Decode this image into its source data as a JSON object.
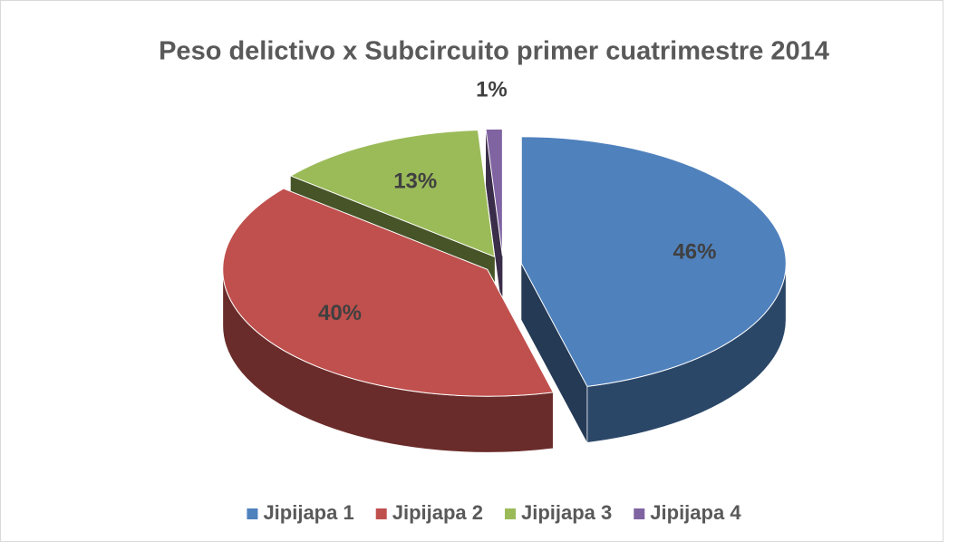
{
  "chart_data": {
    "type": "pie",
    "title": "Peso delictivo x Subcircuito primer cuatrimestre 2014",
    "categories": [
      "Jipijapa 1",
      "Jipijapa 2",
      "Jipijapa 3",
      "Jipijapa 4"
    ],
    "values": [
      46,
      40,
      13,
      1
    ],
    "value_labels": [
      "46%",
      "40%",
      "13%",
      "1%"
    ],
    "colors": [
      "#4f81bd",
      "#c0504d",
      "#9bbb59",
      "#8064a2"
    ],
    "legend": "bottom"
  }
}
